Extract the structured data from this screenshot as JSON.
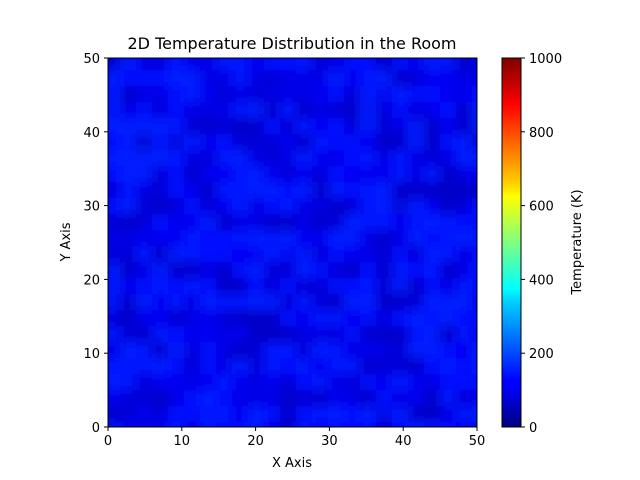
{
  "chart_data": {
    "type": "heatmap",
    "title": "2D Temperature Distribution in the Room",
    "xlabel": "X Axis",
    "ylabel": "Y Axis",
    "xlim": [
      0,
      50
    ],
    "ylim": [
      0,
      50
    ],
    "x_ticks": [
      "0",
      "10",
      "20",
      "30",
      "40",
      "50"
    ],
    "y_ticks": [
      "0",
      "10",
      "20",
      "30",
      "40",
      "50"
    ],
    "colorbar": {
      "label": "Temperature (K)",
      "range": [
        0,
        1000
      ],
      "ticks": [
        "0",
        "200",
        "400",
        "600",
        "800",
        "1000"
      ],
      "colormap": "jet"
    },
    "grid": false,
    "value_range_estimate": [
      90,
      140
    ],
    "colors": {
      "jet_low": "#00007f",
      "jet_field": "#0000ff",
      "jet_high": "#7f0000"
    }
  }
}
